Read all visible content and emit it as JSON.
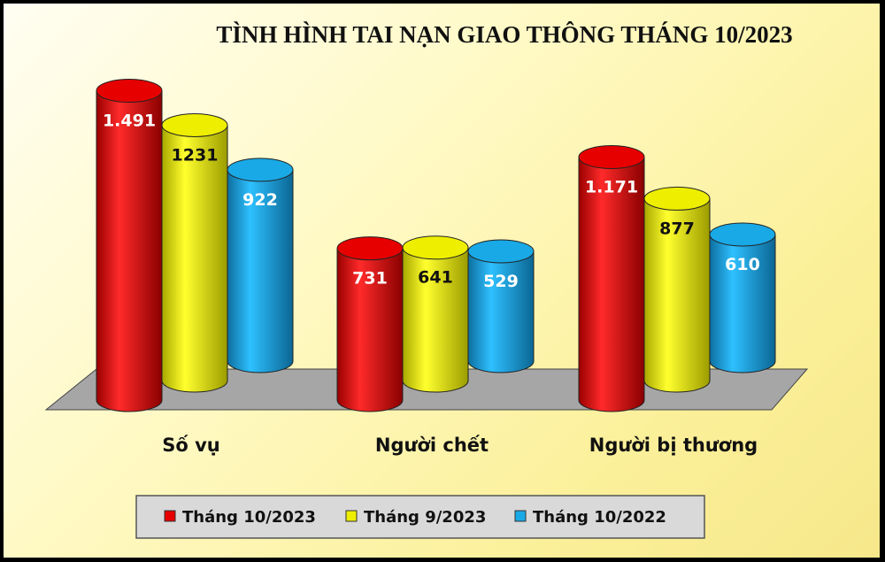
{
  "chart_data": {
    "type": "bar",
    "title": "TÌNH HÌNH TAI NẠN GIAO  THÔNG THÁNG 10/2023",
    "categories": [
      "Số vụ",
      "Người chết",
      "Người bị thương"
    ],
    "series": [
      {
        "name": "Tháng 10/2023",
        "color": "#e60000",
        "label_color": "#ffffff",
        "values": [
          1491,
          731,
          1171
        ],
        "labels": [
          "1.491",
          "731",
          "1.171"
        ]
      },
      {
        "name": "Tháng 9/2023",
        "color": "#eeee00",
        "label_color": "#111111",
        "values": [
          1231,
          641,
          877
        ],
        "labels": [
          "1231",
          "641",
          "877"
        ]
      },
      {
        "name": "Tháng 10/2022",
        "color": "#19a9e6",
        "label_color": "#ffffff",
        "values": [
          922,
          529,
          610
        ],
        "labels": [
          "922",
          "529",
          "610"
        ]
      }
    ],
    "legend_position": "bottom",
    "grid": false,
    "style": "3d-cylinder"
  }
}
